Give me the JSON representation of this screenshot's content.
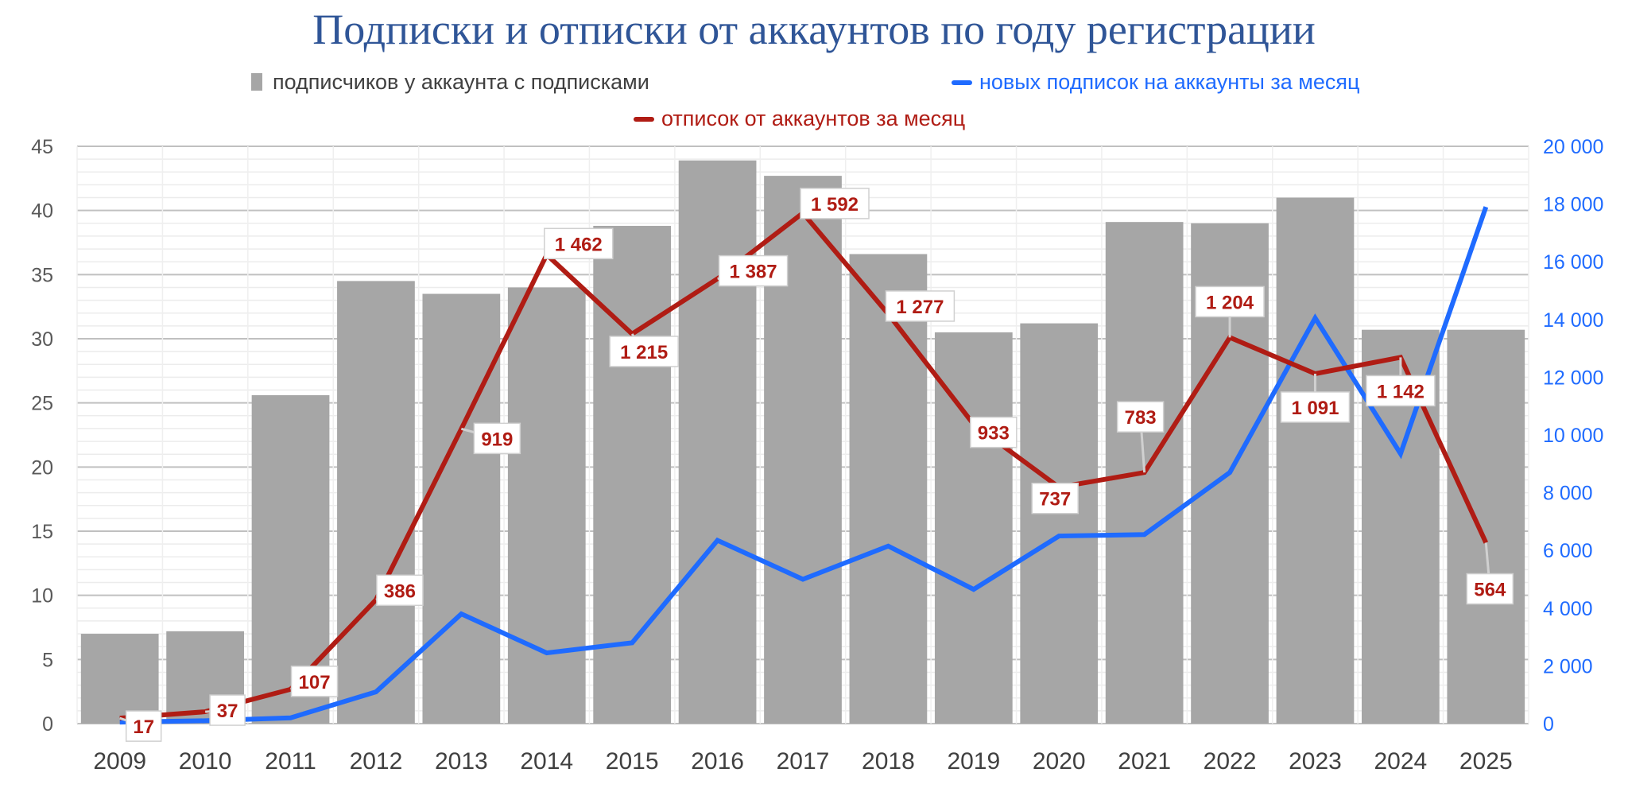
{
  "chart_data": {
    "type": "bar+line",
    "title": "Подписки и отписки от аккаунтов по году регистрации",
    "categories": [
      "2009",
      "2010",
      "2011",
      "2012",
      "2013",
      "2014",
      "2015",
      "2016",
      "2017",
      "2018",
      "2019",
      "2020",
      "2021",
      "2022",
      "2023",
      "2024",
      "2025"
    ],
    "series": [
      {
        "name": "подписчиков у аккаунта с подписками",
        "type": "bar",
        "axis": "left",
        "color": "#a6a6a6",
        "values": [
          7.0,
          7.2,
          25.6,
          34.5,
          33.5,
          34.0,
          38.8,
          43.9,
          42.7,
          36.6,
          30.5,
          31.2,
          39.1,
          39.0,
          41.0,
          30.7,
          30.7
        ]
      },
      {
        "name": "новых подписок на аккаунты за месяц",
        "type": "line",
        "axis": "right",
        "color": "#1f6bff",
        "values": [
          50,
          100,
          200,
          1100,
          3800,
          2450,
          2800,
          6350,
          5000,
          6150,
          4650,
          6500,
          6550,
          8700,
          14050,
          9350,
          17900
        ]
      },
      {
        "name": "отписок от аккаунтов за месяц",
        "type": "line",
        "axis": "hidden",
        "color": "#b01c14",
        "values": [
          17,
          37,
          107,
          386,
          919,
          1462,
          1215,
          1387,
          1592,
          1277,
          933,
          737,
          783,
          1204,
          1091,
          1142,
          564
        ],
        "labels": [
          "17",
          "37",
          "107",
          "386",
          "919",
          "1 462",
          "1 215",
          "1 387",
          "1 592",
          "1 277",
          "933",
          "737",
          "783",
          "1 204",
          "1 091",
          "1 142",
          "564"
        ]
      }
    ],
    "left_axis": {
      "range": [
        0,
        45
      ],
      "ticks": [
        "0",
        "5",
        "10",
        "15",
        "20",
        "25",
        "30",
        "35",
        "40",
        "45"
      ]
    },
    "right_axis": {
      "range": [
        0,
        20000
      ],
      "ticks": [
        "0",
        "2 000",
        "4 000",
        "6 000",
        "8 000",
        "10 000",
        "12 000",
        "14 000",
        "16 000",
        "18 000",
        "20 000"
      ],
      "color": "#1f6bff"
    },
    "hidden_axis_range": [
      0,
      1800
    ],
    "grid": true,
    "legend": "top"
  }
}
